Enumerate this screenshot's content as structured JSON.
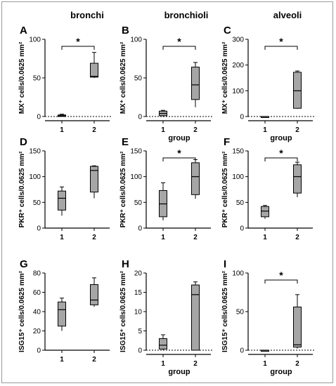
{
  "column_headers": [
    "bronchi",
    "bronchioli",
    "alveoli"
  ],
  "style": {
    "box_fill": "#a6a6a6",
    "axis_color": "#000000",
    "frame_color": "#9a9a9a"
  },
  "chart_data": [
    {
      "type": "box",
      "panel": "A",
      "ylabel": "MX⁺ cells/0.0625 mm²",
      "xlabel": "",
      "categories": [
        "1",
        "2"
      ],
      "ylim": [
        0,
        100
      ],
      "yticks": [
        0,
        50,
        100
      ],
      "boxes": [
        {
          "min": 0,
          "q1": 0,
          "median": 1,
          "q3": 2,
          "max": 3
        },
        {
          "min": 50,
          "q1": 51,
          "median": 52,
          "q3": 69,
          "max": 83
        }
      ],
      "significance": "*",
      "reference_line": 0
    },
    {
      "type": "box",
      "panel": "B",
      "ylabel": "MX⁺ cells/0.0625 mm²",
      "xlabel": "group",
      "categories": [
        "1",
        "2"
      ],
      "ylim": [
        0,
        100
      ],
      "yticks": [
        0,
        50,
        100
      ],
      "boxes": [
        {
          "min": 0,
          "q1": 1,
          "median": 4,
          "q3": 7,
          "max": 8
        },
        {
          "min": 12,
          "q1": 22,
          "median": 41,
          "q3": 64,
          "max": 70
        }
      ],
      "significance": "*",
      "reference_line": 0
    },
    {
      "type": "box",
      "panel": "C",
      "ylabel": "MX⁺ cells/0.0625 mm²",
      "xlabel": "group",
      "categories": [
        "1",
        "2"
      ],
      "ylim": [
        0,
        300
      ],
      "yticks": [
        0,
        100,
        200,
        300
      ],
      "boxes": [
        {
          "min": 0,
          "q1": 0,
          "median": 0,
          "q3": 0,
          "max": 0
        },
        {
          "min": 30,
          "q1": 32,
          "median": 100,
          "q3": 172,
          "max": 177
        }
      ],
      "significance": "*",
      "reference_line": 0
    },
    {
      "type": "box",
      "panel": "D",
      "ylabel": "PKR⁺ cells/0.0625 mm²",
      "xlabel": "",
      "categories": [
        "1",
        "2"
      ],
      "ylim": [
        0,
        150
      ],
      "yticks": [
        0,
        50,
        100,
        150
      ],
      "boxes": [
        {
          "min": 24,
          "q1": 35,
          "median": 58,
          "q3": 72,
          "max": 80
        },
        {
          "min": 58,
          "q1": 70,
          "median": 112,
          "q3": 120,
          "max": 121
        }
      ],
      "significance": "",
      "reference_line": null
    },
    {
      "type": "box",
      "panel": "E",
      "ylabel": "PKR⁺ cells/0.0625 mm²",
      "xlabel": "",
      "categories": [
        "1",
        "2"
      ],
      "ylim": [
        0,
        150
      ],
      "yticks": [
        0,
        50,
        100,
        150
      ],
      "boxes": [
        {
          "min": 15,
          "q1": 22,
          "median": 47,
          "q3": 73,
          "max": 88
        },
        {
          "min": 57,
          "q1": 65,
          "median": 100,
          "q3": 127,
          "max": 133
        }
      ],
      "significance": "*",
      "reference_line": null
    },
    {
      "type": "box",
      "panel": "F",
      "ylabel": "PKR⁺ cells/0.0625 mm²",
      "xlabel": "",
      "categories": [
        "1",
        "2"
      ],
      "ylim": [
        0,
        150
      ],
      "yticks": [
        0,
        50,
        100,
        150
      ],
      "boxes": [
        {
          "min": 18,
          "q1": 22,
          "median": 33,
          "q3": 42,
          "max": 44
        },
        {
          "min": 60,
          "q1": 68,
          "median": 100,
          "q3": 123,
          "max": 128
        }
      ],
      "significance": "*",
      "reference_line": null
    },
    {
      "type": "box",
      "panel": "G",
      "ylabel": "ISG15⁺ cells/0.0625 mm²",
      "xlabel": "",
      "categories": [
        "1",
        "2"
      ],
      "ylim": [
        0,
        80
      ],
      "yticks": [
        0,
        20,
        40,
        60,
        80
      ],
      "boxes": [
        {
          "min": 20,
          "q1": 25,
          "median": 42,
          "q3": 50,
          "max": 54
        },
        {
          "min": 45,
          "q1": 47,
          "median": 52,
          "q3": 68,
          "max": 75
        }
      ],
      "significance": "",
      "reference_line": null
    },
    {
      "type": "box",
      "panel": "H",
      "ylabel": "ISG15⁺ cells/0.0625 mm²",
      "xlabel": "group",
      "categories": [
        "1",
        "2"
      ],
      "ylim": [
        0,
        20
      ],
      "yticks": [
        0,
        5,
        10,
        15,
        20
      ],
      "boxes": [
        {
          "min": 0,
          "q1": 0.3,
          "median": 1.3,
          "q3": 3,
          "max": 4
        },
        {
          "min": 0,
          "q1": 0,
          "median": 14.4,
          "q3": 16.9,
          "max": 17.7
        }
      ],
      "significance": "",
      "reference_line": 0
    },
    {
      "type": "box",
      "panel": "I",
      "ylabel": "ISG15⁺ cells/0.0625 mm²",
      "xlabel": "group",
      "categories": [
        "1",
        "2"
      ],
      "ylim": [
        0,
        100
      ],
      "yticks": [
        0,
        50,
        100
      ],
      "boxes": [
        {
          "min": 0,
          "q1": 0,
          "median": 0,
          "q3": 0,
          "max": 0
        },
        {
          "min": 2,
          "q1": 4,
          "median": 7,
          "q3": 56,
          "max": 72
        }
      ],
      "significance": "*",
      "reference_line": 0
    }
  ]
}
